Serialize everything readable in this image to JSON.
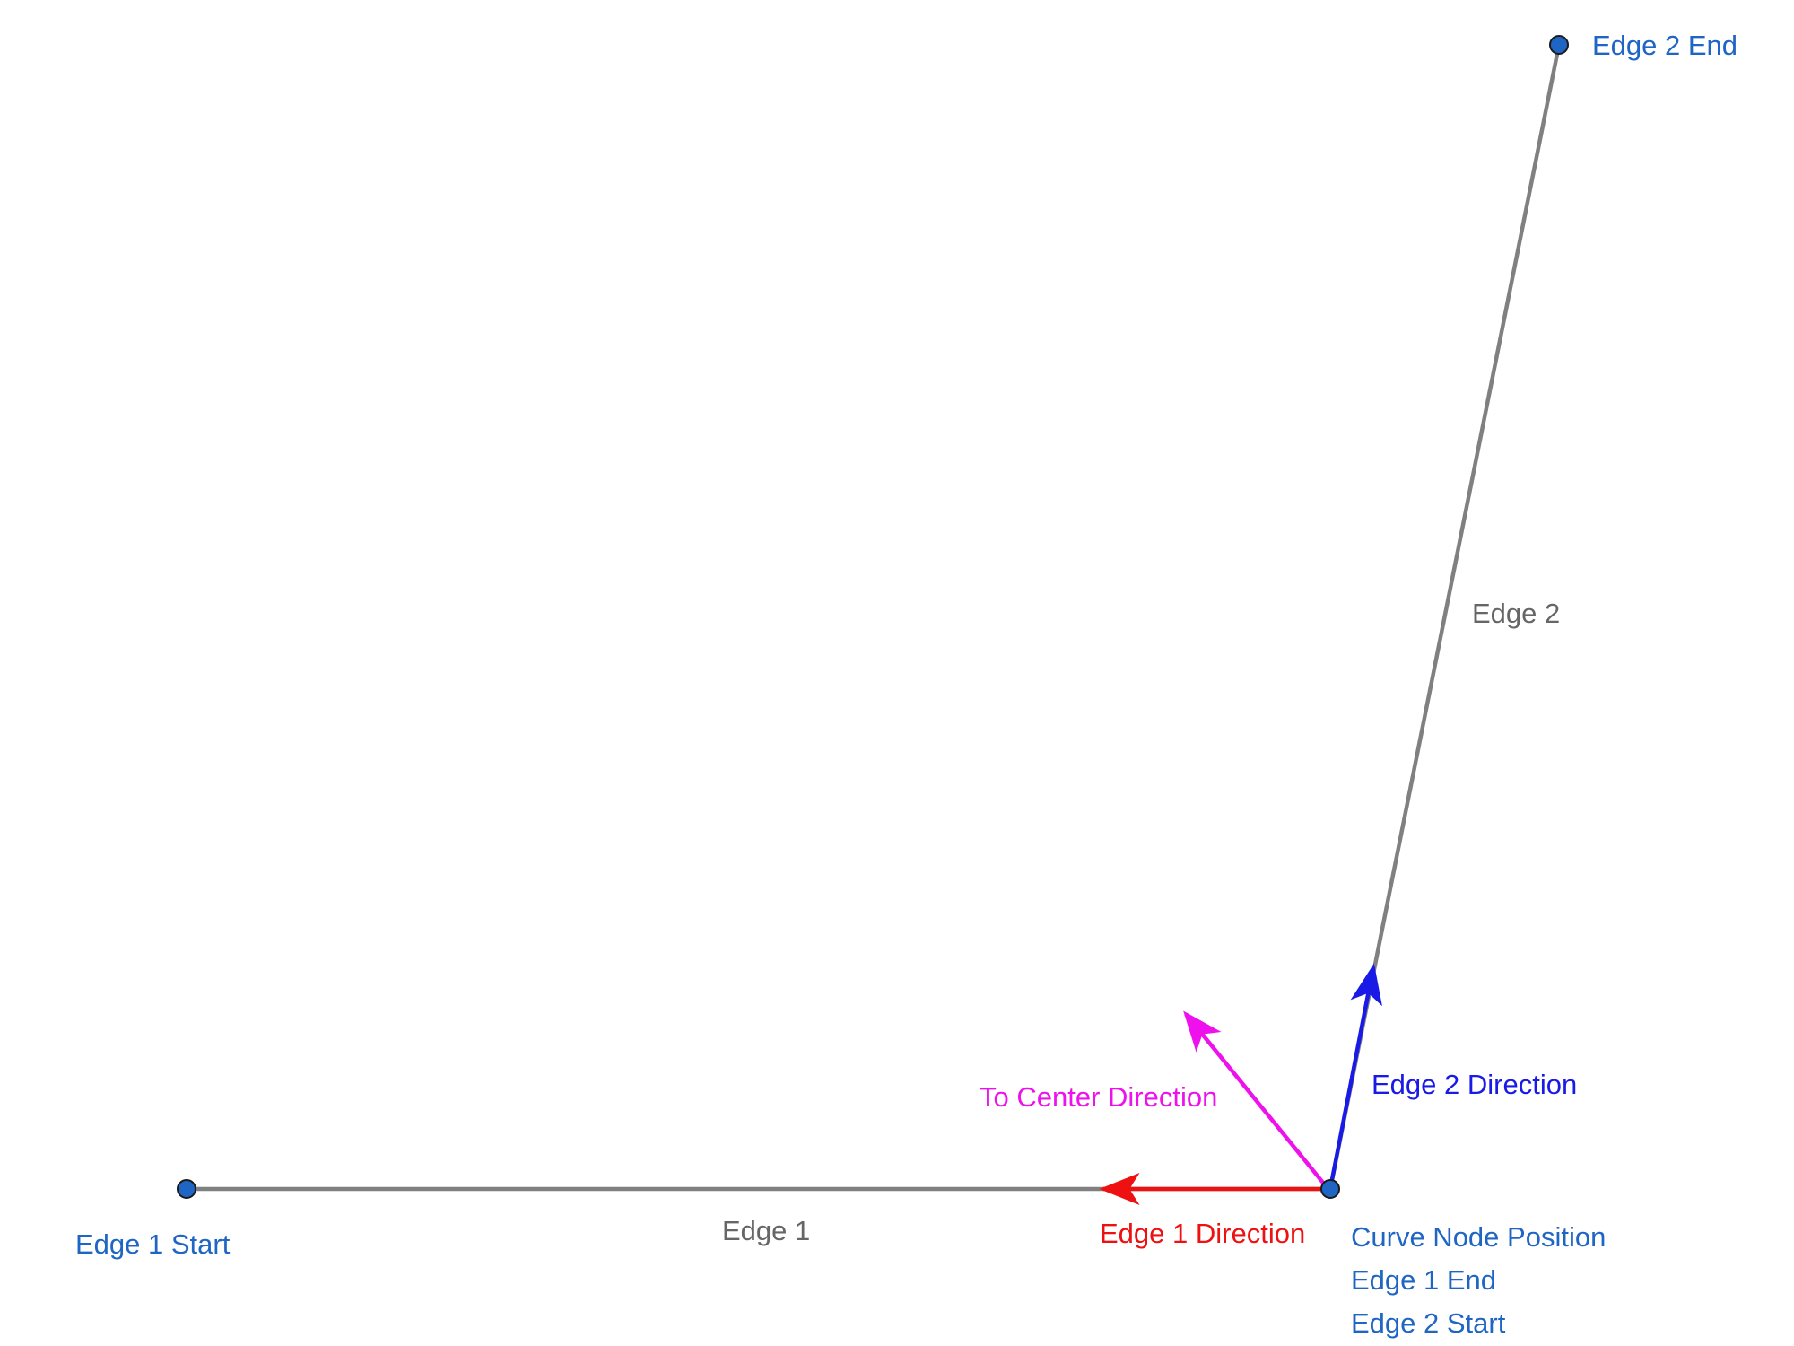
{
  "colors": {
    "edge": "#808080",
    "point_fill": "#1f66c4",
    "point_stroke": "#1a1a1a",
    "point_label": "#1f66c4",
    "edge_label": "#666666",
    "edge1_direction": "#ee1111",
    "edge2_direction": "#1a1ae6",
    "to_center_direction": "#ee11ee"
  },
  "points": {
    "edge1_start": {
      "label": "Edge 1 Start"
    },
    "edge2_end": {
      "label": "Edge 2 End"
    },
    "curve_node": {
      "labels": [
        "Curve Node Position",
        "Edge 1 End",
        "Edge 2 Start"
      ]
    }
  },
  "edges": {
    "edge1": {
      "label": "Edge 1"
    },
    "edge2": {
      "label": "Edge 2"
    }
  },
  "vectors": {
    "edge1_direction": {
      "label": "Edge 1 Direction"
    },
    "edge2_direction": {
      "label": "Edge 2 Direction"
    },
    "to_center_direction": {
      "label": "To Center Direction"
    }
  }
}
